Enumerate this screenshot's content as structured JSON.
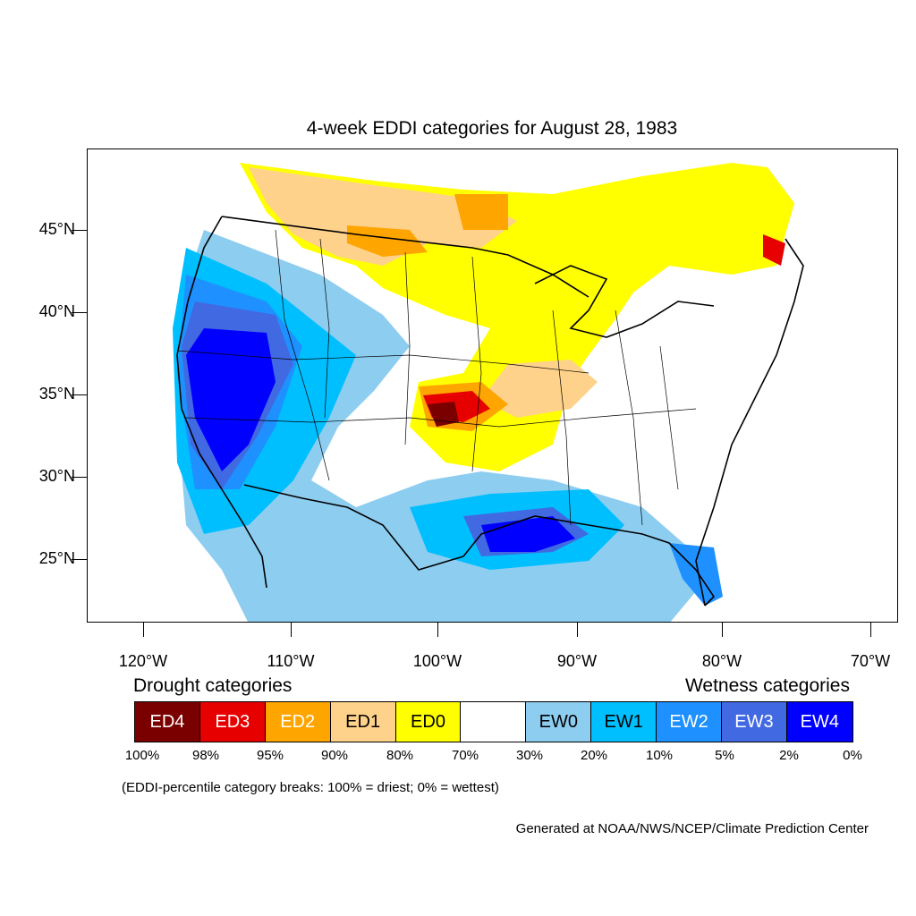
{
  "title": "4-week EDDI categories for August 28, 1983",
  "axes": {
    "lat_labels": [
      "45°N",
      "40°N",
      "35°N",
      "30°N",
      "25°N"
    ],
    "lon_labels": [
      "120°W",
      "110°W",
      "100°W",
      "90°W",
      "80°W",
      "70°W"
    ],
    "lat_values": [
      45,
      40,
      35,
      30,
      25
    ],
    "lon_values": [
      -120,
      -110,
      -100,
      -90,
      -80,
      -70
    ]
  },
  "legend": {
    "drought_heading": "Drought categories",
    "wetness_heading": "Wetness categories",
    "categories": [
      {
        "label": "ED4",
        "color": "#7a0000",
        "text_color": "#ffffff"
      },
      {
        "label": "ED3",
        "color": "#e60000",
        "text_color": "#ffffff"
      },
      {
        "label": "ED2",
        "color": "#ffa500",
        "text_color": "#ffffff"
      },
      {
        "label": "ED1",
        "color": "#fed28a",
        "text_color": "#000000"
      },
      {
        "label": "ED0",
        "color": "#ffff00",
        "text_color": "#000000"
      },
      {
        "label": "",
        "color": "#ffffff",
        "text_color": "#000000"
      },
      {
        "label": "EW0",
        "color": "#8dcdf0",
        "text_color": "#000000"
      },
      {
        "label": "EW1",
        "color": "#00bfff",
        "text_color": "#000000"
      },
      {
        "label": "EW2",
        "color": "#1e90ff",
        "text_color": "#ffffff"
      },
      {
        "label": "EW3",
        "color": "#4169e1",
        "text_color": "#ffffff"
      },
      {
        "label": "EW4",
        "color": "#0000ff",
        "text_color": "#ffffff"
      }
    ],
    "breaks": [
      "100%",
      "98%",
      "95%",
      "90%",
      "80%",
      "70%",
      "30%",
      "20%",
      "10%",
      "5%",
      "2%",
      "0%"
    ]
  },
  "note": "(EDDI-percentile category breaks: 100% = driest; 0% = wettest)",
  "credit": "Generated at NOAA/NWS/NCEP/Climate Prediction Center"
}
